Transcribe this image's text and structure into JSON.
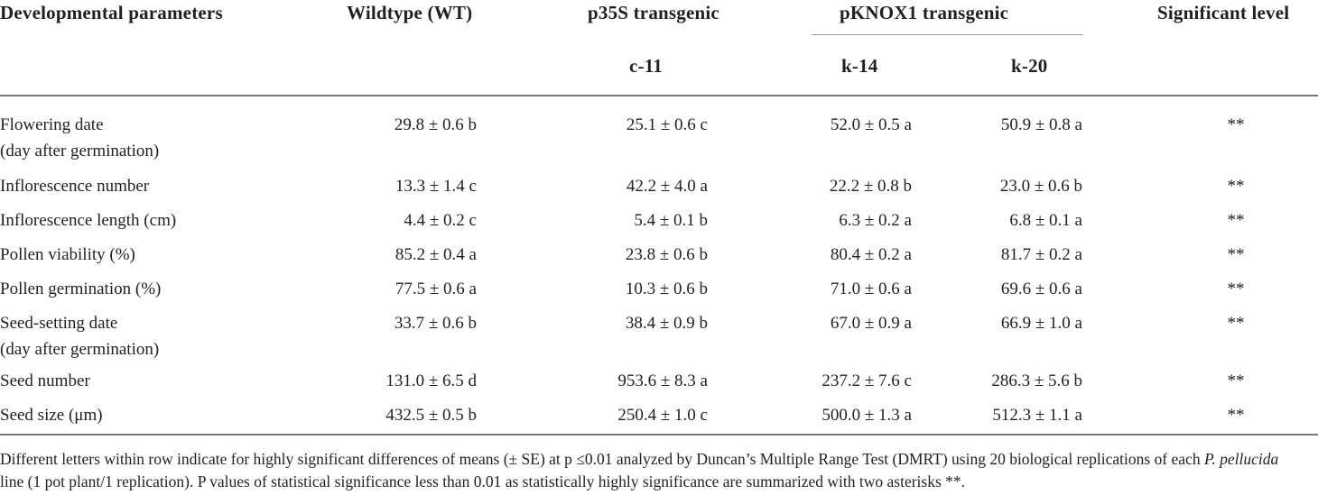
{
  "header": {
    "col0": "Developmental parameters",
    "col1": "Wildtype (WT)",
    "col2": "p35S transgenic",
    "col3": "pKNOX1 transgenic",
    "col4": "Significant level",
    "sub2": "c-11",
    "sub3a": "k-14",
    "sub3b": "k-20"
  },
  "rows": [
    {
      "label": "Flowering date",
      "label2": "(day after germination)",
      "wt": "29.8 ± 0.6 b",
      "c11": "25.1 ± 0.6 c",
      "k14": "52.0 ± 0.5 a",
      "k20": "50.9 ± 0.8 a",
      "sig": "**"
    },
    {
      "label": "Inflorescence number",
      "label2": "",
      "wt": "13.3 ± 1.4 c",
      "c11": "42.2 ± 4.0 a",
      "k14": "22.2 ± 0.8 b",
      "k20": "23.0 ± 0.6 b",
      "sig": "**"
    },
    {
      "label": "Inflorescence length (cm)",
      "label2": "",
      "wt": "4.4 ± 0.2 c",
      "c11": "5.4 ± 0.1 b",
      "k14": "6.3 ± 0.2 a",
      "k20": "6.8 ± 0.1 a",
      "sig": "**"
    },
    {
      "label": "Pollen viability (%)",
      "label2": "",
      "wt": "85.2 ± 0.4 a",
      "c11": "23.8 ± 0.6 b",
      "k14": "80.4 ± 0.2 a",
      "k20": "81.7 ± 0.2 a",
      "sig": "**"
    },
    {
      "label": "Pollen germination (%)",
      "label2": "",
      "wt": "77.5 ± 0.6 a",
      "c11": "10.3 ± 0.6 b",
      "k14": "71.0 ± 0.6 a",
      "k20": "69.6 ± 0.6 a",
      "sig": "**"
    },
    {
      "label": "Seed-setting date",
      "label2": "(day after germination)",
      "wt": "33.7 ± 0.6 b",
      "c11": "38.4 ± 0.9 b",
      "k14": "67.0 ± 0.9 a",
      "k20": "66.9 ± 1.0 a",
      "sig": "**"
    },
    {
      "label": "Seed number",
      "label2": "",
      "wt": "131.0 ± 6.5 d",
      "c11": "953.6 ± 8.3 a",
      "k14": "237.2 ± 7.6 c",
      "k20": "286.3 ± 5.6 b",
      "sig": "**"
    },
    {
      "label": "Seed size (μm)",
      "label2": "",
      "wt": "432.5 ± 0.5 b",
      "c11": "250.4 ± 1.0 c",
      "k14": "500.0 ± 1.3 a",
      "k20": "512.3 ± 1.1 a",
      "sig": "**"
    }
  ],
  "footnote": {
    "part1": "Different letters within row indicate for highly significant differences of means (± SE) at p ≤0.01 analyzed by Duncan’s Multiple Range Test (DMRT) using 20 biological replications of each",
    "italic": "P. pellucida",
    "part2": " line (1 pot plant/1 replication). P values of statistical significance less than 0.01 as statistically highly significance are summarized with two asterisks **."
  }
}
